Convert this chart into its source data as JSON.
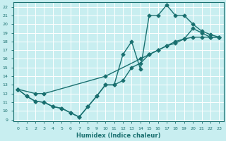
{
  "line1_x": [
    0,
    1,
    2,
    3,
    4,
    5,
    6,
    7,
    8,
    9,
    10,
    11,
    12,
    13,
    14,
    15,
    16,
    17,
    18,
    19,
    20,
    21,
    22,
    23
  ],
  "line1_y": [
    12.5,
    11.7,
    11.1,
    11.0,
    10.5,
    10.3,
    9.8,
    9.3,
    10.5,
    11.7,
    13.0,
    13.0,
    16.5,
    18.0,
    14.8,
    21.0,
    21.0,
    22.2,
    21.0,
    21.0,
    20.0,
    19.2,
    18.8,
    18.5
  ],
  "line2_x": [
    0,
    2,
    3,
    10,
    14,
    15,
    16,
    17,
    18,
    19,
    20,
    21,
    22,
    23
  ],
  "line2_y": [
    12.5,
    12.0,
    12.0,
    14.0,
    16.0,
    16.5,
    17.0,
    17.5,
    18.0,
    18.3,
    19.5,
    19.0,
    18.5,
    18.5
  ],
  "line3_x": [
    0,
    1,
    2,
    3,
    4,
    5,
    6,
    7,
    8,
    9,
    10,
    11,
    12,
    13,
    14,
    15,
    16,
    17,
    18,
    19,
    20,
    21,
    22,
    23
  ],
  "line3_y": [
    12.5,
    11.7,
    11.1,
    11.0,
    10.5,
    10.3,
    9.8,
    9.3,
    10.5,
    11.7,
    13.0,
    13.0,
    13.5,
    15.0,
    15.5,
    16.5,
    17.0,
    17.5,
    17.8,
    18.3,
    18.5,
    18.5,
    18.5,
    18.5
  ],
  "color": "#1a7070",
  "bg_color": "#c8eef0",
  "grid_color": "#b0d8dc",
  "xlabel": "Humidex (Indice chaleur)",
  "xlim": [
    -0.5,
    23.5
  ],
  "ylim": [
    8.8,
    22.5
  ],
  "yticks": [
    9,
    10,
    11,
    12,
    13,
    14,
    15,
    16,
    17,
    18,
    19,
    20,
    21,
    22
  ],
  "xticks": [
    0,
    1,
    2,
    3,
    4,
    5,
    6,
    7,
    8,
    9,
    10,
    11,
    12,
    13,
    14,
    15,
    16,
    17,
    18,
    19,
    20,
    21,
    22,
    23
  ],
  "marker": "D",
  "markersize": 2.5,
  "linewidth": 1.0
}
